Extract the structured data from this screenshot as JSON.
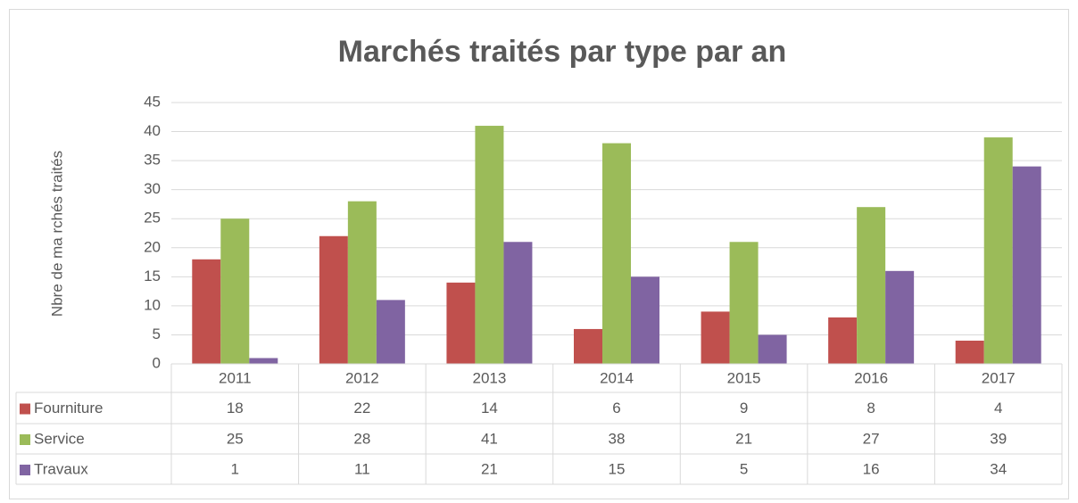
{
  "chart_data": {
    "type": "bar",
    "title": "Marchés traités par type par an",
    "y_label": "Nbre de ma rchés traités",
    "categories": [
      "2011",
      "2012",
      "2013",
      "2014",
      "2015",
      "2016",
      "2017"
    ],
    "series": [
      {
        "name": "Fourniture",
        "color": "#c0504d",
        "values": [
          18,
          22,
          14,
          6,
          9,
          8,
          4
        ]
      },
      {
        "name": "Service",
        "color": "#9bbb59",
        "values": [
          25,
          28,
          41,
          38,
          21,
          27,
          39
        ]
      },
      {
        "name": "Travaux",
        "color": "#8064a2",
        "values": [
          1,
          11,
          21,
          15,
          5,
          16,
          34
        ]
      }
    ],
    "ylim": [
      0,
      45
    ],
    "yticks": [
      0,
      5,
      10,
      15,
      20,
      25,
      30,
      35,
      40,
      45
    ],
    "grid": true,
    "data_table": true
  }
}
